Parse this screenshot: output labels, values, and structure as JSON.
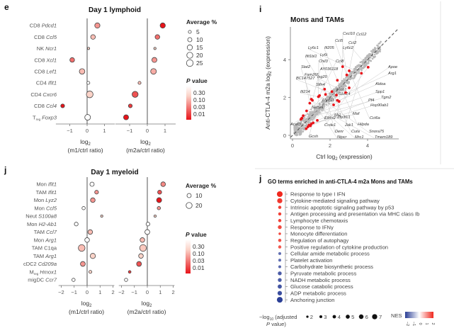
{
  "panel_labels": {
    "e": "e",
    "j_left": "j",
    "i": "i",
    "j_right": "j"
  },
  "colors": {
    "p_high": "#fde6e0",
    "p_low": "#e8141a",
    "nes_neg": "#2b3f96",
    "nes_pos": "#f0281e",
    "scatter_gray": "#b8b8b8",
    "scatter_red": "#e8141a"
  },
  "chart_data": [
    {
      "type": "scatter",
      "title": "Day 1 lymphoid",
      "subtype": "dot-plot",
      "facets": [
        {
          "xlabel_line1": "log2",
          "xlabel_line2": "(m1/ctrl ratio)",
          "ticks": [
            -1,
            0,
            1
          ],
          "xlim": [
            -1.8,
            1.6
          ]
        },
        {
          "xlabel_line1": "log2",
          "xlabel_line2": "(m2a/ctrl ratio)",
          "ticks": [
            -1,
            0,
            1
          ],
          "xlim": [
            -1.8,
            1.6
          ]
        }
      ],
      "rows": [
        {
          "cell": "CD8",
          "gene": "Pdcd1",
          "m1": 0.59,
          "m1_avg": 15,
          "m1_p": 0.1,
          "m2a": 0.87,
          "m2a_avg": 15,
          "m2a_p": 0.01
        },
        {
          "cell": "CD8",
          "gene": "Ccl5",
          "m1": 0.34,
          "m1_avg": 12,
          "m1_p": 0.2,
          "m2a": 0.57,
          "m2a_avg": 12,
          "m2a_p": 0.05
        },
        {
          "cell": "NK",
          "gene": "Ncr1",
          "m1": 0.08,
          "m1_avg": 3,
          "m1_p": 0.3,
          "m2a": 0.43,
          "m2a_avg": 3,
          "m2a_p": 0.3
        },
        {
          "cell": "CD8",
          "gene": "Xcl1",
          "m1": -0.86,
          "m1_avg": 12,
          "m1_p": 0.05,
          "m2a": 0.4,
          "m2a_avg": 14,
          "m2a_p": 0.1
        },
        {
          "cell": "CD8",
          "gene": "Lef1",
          "m1": -0.29,
          "m1_avg": 17,
          "m1_p": 0.2,
          "m2a": 0.35,
          "m2a_avg": 18,
          "m2a_p": 0.15
        },
        {
          "cell": "CD4",
          "gene": "Ifit1",
          "m1": 0.07,
          "m1_avg": 5,
          "m1_p": 0.6,
          "m2a": -0.44,
          "m2a_avg": 5,
          "m2a_p": 0.2
        },
        {
          "cell": "CD4",
          "gene": "Cxcr6",
          "m1": 0.15,
          "m1_avg": 25,
          "m1_p": 0.3,
          "m2a": -0.69,
          "m2a_avg": 20,
          "m2a_p": 0.03
        },
        {
          "cell": "CD8",
          "gene": "Ccl4",
          "m1": -1.41,
          "m1_avg": 8,
          "m1_p": 0.01,
          "m2a": -0.96,
          "m2a_avg": 8,
          "m2a_p": 0.02
        },
        {
          "cell": "T",
          "cell_sub": "reg",
          "gene": "Foxp3",
          "m1": 0.03,
          "m1_avg": 18,
          "m1_p": 0.8,
          "m2a": -1.2,
          "m2a_avg": 14,
          "m2a_p": 0.01
        }
      ],
      "size_legend": {
        "title": "Average %",
        "values": [
          5,
          10,
          15,
          20,
          25
        ]
      },
      "color_legend": {
        "title_italic": "P",
        "title_rest": " value",
        "ticks": [
          "0.30",
          "0.10",
          "0.03",
          "0.01"
        ]
      }
    },
    {
      "type": "scatter",
      "title": "Day 1 myeloid",
      "subtype": "dot-plot",
      "facets": [
        {
          "xlabel_line1": "log2",
          "xlabel_line2": "(m1/ctrl ratio)",
          "ticks": [
            -2,
            -1,
            0,
            1,
            2
          ],
          "xlim": [
            -2.2,
            2.1
          ]
        },
        {
          "xlabel_line1": "log2",
          "xlabel_line2": "(m2a/ctrl ratio)",
          "ticks": [
            -2,
            -1,
            0,
            1,
            2
          ],
          "xlim": [
            -2.2,
            2.1
          ]
        }
      ],
      "rows": [
        {
          "cell": "Mon",
          "gene": "Ifit1",
          "m1": 0.38,
          "m1_avg": 10,
          "m1_p": 0.6,
          "m2a": 1.22,
          "m2a_avg": 12,
          "m2a_p": 0.08
        },
        {
          "cell": "TAM",
          "gene": "Ifit1",
          "m1": 0.73,
          "m1_avg": 8,
          "m1_p": 0.1,
          "m2a": 0.95,
          "m2a_avg": 9,
          "m2a_p": 0.03
        },
        {
          "cell": "Mon",
          "gene": "Lyz2",
          "m1": 0.44,
          "m1_avg": 12,
          "m1_p": 0.1,
          "m2a": 0.91,
          "m2a_avg": 14,
          "m2a_p": 0.005
        },
        {
          "cell": "Mon",
          "gene": "Ccl5",
          "m1": -0.27,
          "m1_avg": 6,
          "m1_p": 0.6,
          "m2a": 0.89,
          "m2a_avg": 6,
          "m2a_p": 0.1
        },
        {
          "cell": "Neut",
          "gene": "S100a8",
          "m1": 1.13,
          "m1_avg": 3,
          "m1_p": 0.3,
          "m2a": 0.6,
          "m2a_avg": 3,
          "m2a_p": 0.3
        },
        {
          "cell": "Mon",
          "gene": "H2-Ab1",
          "m1": -0.84,
          "m1_avg": 8,
          "m1_p": 0.5,
          "m2a": 0.05,
          "m2a_avg": 8,
          "m2a_p": 0.8
        },
        {
          "cell": "TAM",
          "gene": "Ccl7",
          "m1": 0.24,
          "m1_avg": 12,
          "m1_p": 0.2,
          "m2a": 0.0,
          "m2a_avg": 13,
          "m2a_p": 0.9
        },
        {
          "cell": "Mon",
          "gene": "Arg1",
          "m1": 0.0,
          "m1_avg": 12,
          "m1_p": 0.9,
          "m2a": -0.38,
          "m2a_avg": 12,
          "m2a_p": 0.2
        },
        {
          "cell": "TAM",
          "gene": "C1qa",
          "gene_upright": true,
          "m1": -0.42,
          "m1_avg": 25,
          "m1_p": 0.2,
          "m2a": -0.33,
          "m2a_avg": 25,
          "m2a_p": 0.25
        },
        {
          "cell": "TAM",
          "gene": "Arg1",
          "m1": 0.44,
          "m1_avg": 15,
          "m1_p": 0.3,
          "m2a": -0.49,
          "m2a_avg": 12,
          "m2a_p": 0.3
        },
        {
          "cell": "cDC2",
          "gene": "Cd209a",
          "m1": -0.33,
          "m1_avg": 13,
          "m1_p": 0.1,
          "m2a": -0.64,
          "m2a_avg": 13,
          "m2a_p": 0.03
        },
        {
          "cell": "M",
          "cell_sub": "reg",
          "gene": "Hmox1",
          "m1": 0.25,
          "m1_avg": 5,
          "m1_p": 0.3,
          "m2a": -1.36,
          "m2a_avg": 4,
          "m2a_p": 0.02
        },
        {
          "cell": "migDC",
          "gene": "Ccr7",
          "m1": -1.05,
          "m1_avg": 6,
          "m1_p": 0.4,
          "m2a": -1.64,
          "m2a_avg": 6,
          "m2a_p": 0.4
        }
      ],
      "size_legend": {
        "title": "Average %",
        "values": [
          10,
          20
        ]
      },
      "color_legend": {
        "title_italic": "P",
        "title_rest": " value",
        "ticks": [
          "0.30",
          "0.10",
          "0.03",
          "0.01"
        ]
      }
    },
    {
      "type": "scatter",
      "title": "Mons and TAMs",
      "xlabel": "Ctrl log2 (expression)",
      "ylabel": "Anti-CTLA-4 m2a log2 (expression)",
      "xlim": [
        -0.1,
        5.7
      ],
      "ylim": [
        -0.1,
        5.7
      ],
      "xticks": [
        0,
        2,
        4
      ],
      "yticks": [
        0,
        2,
        4
      ],
      "diagonal": "dashed y = x",
      "highlighted": [
        {
          "x": 2.67,
          "y": 3.63
        },
        {
          "x": 3.02,
          "y": 3.41
        },
        {
          "x": 2.89,
          "y": 3.19
        },
        {
          "x": 4.03,
          "y": 3.6
        },
        {
          "x": 3.67,
          "y": 3.28
        },
        {
          "x": 2.39,
          "y": 2.91
        },
        {
          "x": 3.02,
          "y": 2.51
        },
        {
          "x": 1.71,
          "y": 2.44
        },
        {
          "x": 2.1,
          "y": 2.31
        },
        {
          "x": 1.38,
          "y": 2.04
        },
        {
          "x": 1.44,
          "y": 2.1
        },
        {
          "x": 1.0,
          "y": 1.91
        },
        {
          "x": 1.06,
          "y": 1.85
        },
        {
          "x": 0.92,
          "y": 1.7
        },
        {
          "x": 2.34,
          "y": 2.13
        },
        {
          "x": 2.83,
          "y": 2.26
        },
        {
          "x": 2.39,
          "y": 1.85
        },
        {
          "x": 2.48,
          "y": 1.79
        },
        {
          "x": 2.19,
          "y": 1.61
        },
        {
          "x": 0.75,
          "y": 1.29
        },
        {
          "x": 0.57,
          "y": 1.04
        },
        {
          "x": 0.5,
          "y": 0.91
        },
        {
          "x": 0.45,
          "y": 0.85
        },
        {
          "x": 1.32,
          "y": 0.79
        },
        {
          "x": 1.0,
          "y": 0.6
        },
        {
          "x": 0.88,
          "y": 0.54
        },
        {
          "x": 0.82,
          "y": 0.45
        },
        {
          "x": 0.73,
          "y": 0.35
        },
        {
          "x": 1.76,
          "y": 2.16
        },
        {
          "x": 0.95,
          "y": 0.5
        },
        {
          "x": 1.1,
          "y": 0.66
        }
      ],
      "gene_labels": [
        "Cxcl10",
        "Ccl12",
        "Ccl5",
        "Ccl2",
        "Ly6c1",
        "Ifi205",
        "Ly6c2",
        "Ifit1bl1",
        "Ly6i",
        "Chil3",
        "Ccl8",
        "Stat2",
        "AY036118",
        "Fam26f",
        "BC147527",
        "Isg20",
        "Slfn4",
        "Ifi214",
        "Apoe",
        "Arg1",
        "Aldoa",
        "Spp1",
        "Tgm2",
        "Pf4",
        "Hsp90ab1",
        "Fmo1",
        "Gbx14",
        "Med11",
        "Napsa",
        "Mt1",
        "Maf",
        "Zfp36l1",
        "Cct6a",
        "Eif4e2",
        "Csde1",
        "Jak1",
        "Hilpda",
        "Acer3",
        "Denr",
        "Cuta",
        "Snora75",
        "Gcsh",
        "Ntpcr",
        "Mrc1",
        "Tmem189"
      ]
    },
    {
      "type": "scatter",
      "subtype": "GO dot list",
      "title": "GO terms enriched in anti-CTLA-4 m2a  Mons and TAMs",
      "terms": [
        {
          "label": "Response to type I IFN",
          "neglog10p": 7,
          "nes": 2.0
        },
        {
          "label": "Cytokine-mediated signaling pathway",
          "neglog10p": 6,
          "nes": 1.8
        },
        {
          "label": "Intrinsic apoptotic signaling pathway by p53",
          "neglog10p": 3,
          "nes": 1.7
        },
        {
          "label": "Antigen processing and presentation via MHC class Ib",
          "neglog10p": 3,
          "nes": 1.7
        },
        {
          "label": "Lymphocyte chemotaxis",
          "neglog10p": 3,
          "nes": 1.7
        },
        {
          "label": "Response to IFNγ",
          "neglog10p": 4,
          "nes": 1.6
        },
        {
          "label": "Monocyte differentiation",
          "neglog10p": 2,
          "nes": 1.6
        },
        {
          "label": "Regulation of autophagy",
          "neglog10p": 3,
          "nes": 1.5
        },
        {
          "label": "Positive regulation of cytokine production",
          "neglog10p": 3,
          "nes": 1.4
        },
        {
          "label": "Cellular amide metabolic process",
          "neglog10p": 2.5,
          "nes": -1.3
        },
        {
          "label": "Platelet activation",
          "neglog10p": 2.5,
          "nes": -1.3
        },
        {
          "label": "Carbohydrate biosynthetic process",
          "neglog10p": 2.5,
          "nes": -1.4
        },
        {
          "label": "Pyruvate metabolic process",
          "neglog10p": 4,
          "nes": -1.6
        },
        {
          "label": "NADH metabolic process",
          "neglog10p": 4,
          "nes": -1.6
        },
        {
          "label": "Glucose catabolic process",
          "neglog10p": 4.5,
          "nes": -1.7
        },
        {
          "label": "ADP metabolic process",
          "neglog10p": 5,
          "nes": -1.8
        },
        {
          "label": "Anchoring junction",
          "neglog10p": 7,
          "nes": -2.0
        }
      ],
      "size_legend": {
        "title_line1": "−log10 (adjusted",
        "title_line2": "P value)",
        "values": [
          2,
          3,
          4,
          5,
          6,
          7
        ]
      },
      "color_legend": {
        "title": "NES",
        "ticks": [
          "−2",
          "−1",
          "0",
          "1",
          "2"
        ],
        "range": [
          -2,
          2
        ]
      }
    }
  ]
}
